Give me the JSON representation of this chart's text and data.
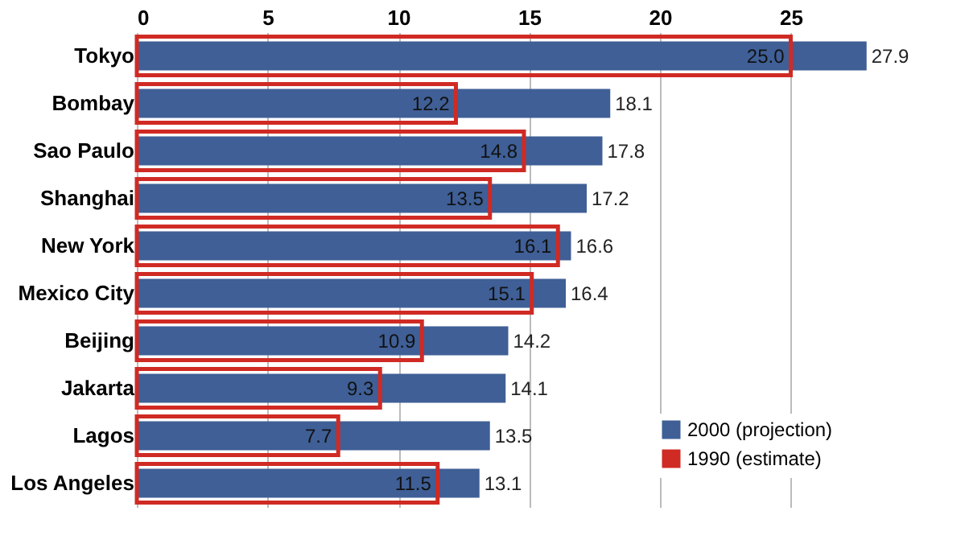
{
  "chart_data": {
    "type": "bar",
    "orientation": "horizontal",
    "categories": [
      "Tokyo",
      "Bombay",
      "Sao Paulo",
      "Shanghai",
      "New York",
      "Mexico City",
      "Beijing",
      "Jakarta",
      "Lagos",
      "Los Angeles"
    ],
    "series": [
      {
        "name": "2000 (projection)",
        "color": "#3f5f96",
        "values": [
          27.9,
          18.1,
          17.8,
          17.2,
          16.6,
          16.4,
          14.2,
          14.1,
          13.5,
          13.1
        ],
        "value_labels": [
          "27.9",
          "18.1",
          "17.8",
          "17.2",
          "16.6",
          "16.4",
          "14.2",
          "14.1",
          "13.5",
          "13.1"
        ]
      },
      {
        "name": "1990 (estimate)",
        "color": "#d02a24",
        "values": [
          25.0,
          12.2,
          14.8,
          13.5,
          16.1,
          15.1,
          10.9,
          9.3,
          7.7,
          11.5
        ],
        "value_labels": [
          "25.0",
          "12.2",
          "14.8",
          "13.5",
          "16.1",
          "15.1",
          "10.9",
          "9.3",
          "7.7",
          "11.5"
        ]
      }
    ],
    "xlim": [
      0,
      28
    ],
    "xticks": [
      0,
      5,
      10,
      15,
      20,
      25
    ],
    "grid": "x",
    "legend": "bottom right"
  }
}
